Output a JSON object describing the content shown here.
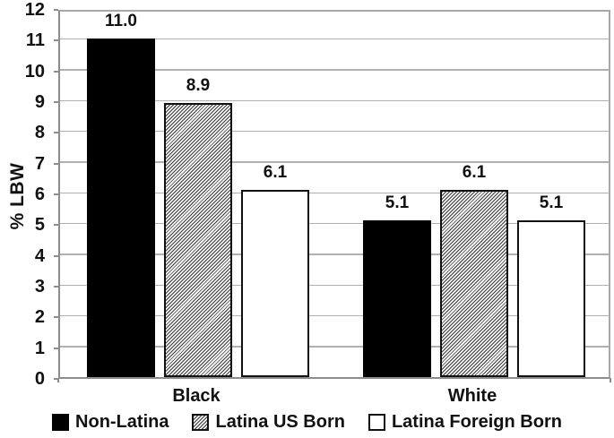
{
  "chart_data": {
    "type": "bar",
    "title": "",
    "ylabel": "% LBW",
    "xlabel": "",
    "ylim": [
      0,
      12
    ],
    "ytick_step": 1,
    "grid": true,
    "legend_position": "bottom",
    "categories": [
      "Black",
      "White"
    ],
    "series": [
      {
        "name": "Non-Latina",
        "pattern": "solid-black",
        "values": [
          11.0,
          5.1
        ]
      },
      {
        "name": "Latina US Born",
        "pattern": "diagonal-hatch",
        "values": [
          8.9,
          6.1
        ]
      },
      {
        "name": "Latina Foreign Born",
        "pattern": "white",
        "values": [
          6.1,
          5.1
        ]
      }
    ],
    "data_labels": [
      "11.0",
      "8.9",
      "6.1",
      "5.1",
      "6.1",
      "5.1"
    ]
  },
  "colors": {
    "bar_fill_black": "#000000",
    "bar_fill_white": "#ffffff",
    "bar_border": "#000000",
    "gridline": "#b0b0b0",
    "axis_line": "#8c8c8c",
    "text": "#111111",
    "background": "#ffffff"
  }
}
